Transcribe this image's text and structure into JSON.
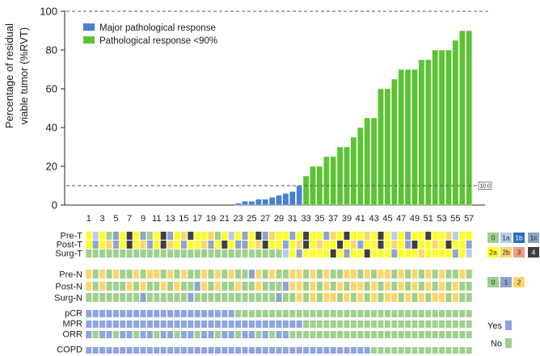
{
  "chart_data": {
    "type": "bar",
    "title": "",
    "ylabel_line1": "Percentage of residual",
    "ylabel_line2": "viable tumor (%RVT)",
    "xlabel": "",
    "ylim": [
      0,
      100
    ],
    "yticks": [
      0,
      20,
      40,
      60,
      80,
      100
    ],
    "reference_lines": [
      {
        "value": 100,
        "style": "dashed",
        "label": ""
      },
      {
        "value": 10,
        "style": "dashed",
        "label": "10.0"
      }
    ],
    "legend": [
      {
        "label": "Major pathological response",
        "color": "#4a7fd4"
      },
      {
        "label": "Pathological response <90%",
        "color": "#5cc334"
      }
    ],
    "xtick_labels": [
      "1",
      "3",
      "5",
      "7",
      "9",
      "11",
      "13",
      "15",
      "17",
      "19",
      "21",
      "23",
      "25",
      "27",
      "29",
      "31",
      "33",
      "35",
      "37",
      "39",
      "41",
      "43",
      "45",
      "47",
      "49",
      "51",
      "53",
      "55",
      "57"
    ],
    "patients": [
      1,
      2,
      3,
      4,
      5,
      6,
      7,
      8,
      9,
      10,
      11,
      12,
      13,
      14,
      15,
      16,
      17,
      18,
      19,
      20,
      21,
      22,
      23,
      24,
      25,
      26,
      27,
      28,
      29,
      30,
      31,
      32,
      33,
      34,
      35,
      36,
      37,
      38,
      39,
      40,
      41,
      42,
      43,
      44,
      45,
      46,
      47,
      48,
      49,
      50,
      51,
      52,
      53,
      54,
      55,
      56,
      57
    ],
    "values": [
      0,
      0,
      0,
      0,
      0,
      0,
      0,
      0,
      0,
      0,
      0,
      0,
      0,
      0,
      0,
      0,
      0,
      0,
      0,
      0,
      0,
      0,
      1,
      2,
      2,
      3,
      3,
      4,
      5,
      6,
      7,
      10,
      15,
      20,
      20,
      25,
      25,
      30,
      30,
      35,
      40,
      45,
      45,
      60,
      60,
      65,
      70,
      70,
      70,
      75,
      75,
      80,
      80,
      80,
      85,
      90,
      90
    ],
    "groups": [
      "MPR",
      "MPR",
      "MPR",
      "MPR",
      "MPR",
      "MPR",
      "MPR",
      "MPR",
      "MPR",
      "MPR",
      "MPR",
      "MPR",
      "MPR",
      "MPR",
      "MPR",
      "MPR",
      "MPR",
      "MPR",
      "MPR",
      "MPR",
      "MPR",
      "MPR",
      "MPR",
      "MPR",
      "MPR",
      "MPR",
      "MPR",
      "MPR",
      "MPR",
      "MPR",
      "MPR",
      "MPR",
      "PR",
      "PR",
      "PR",
      "PR",
      "PR",
      "PR",
      "PR",
      "PR",
      "PR",
      "PR",
      "PR",
      "PR",
      "PR",
      "PR",
      "PR",
      "PR",
      "PR",
      "PR",
      "PR",
      "PR",
      "PR",
      "PR",
      "PR",
      "PR",
      "PR"
    ],
    "group_colors": {
      "MPR": "#4a7fd4",
      "PR": "#5cc334"
    },
    "heatmap": {
      "rows": [
        {
          "label": "Pre-T",
          "codes": [
            "2a",
            "1a",
            "2a",
            "0",
            "1c",
            "2a",
            "4",
            "2a",
            "1c",
            "0",
            "2a",
            "4",
            "1c",
            "2a",
            "2b",
            "4",
            "2a",
            "2a",
            "2b",
            "0",
            "2a",
            "1a",
            "2a",
            "1c",
            "2a",
            "4",
            "1c",
            "2b",
            "2a",
            "2a",
            "1c",
            "2a",
            "4",
            "2a",
            "2a",
            "1c",
            "2b",
            "2a",
            "4",
            "2a",
            "2a",
            "2b",
            "2a",
            "4",
            "2a",
            "1a",
            "2a",
            "1c",
            "2a",
            "2a",
            "4",
            "2a",
            "2a",
            "2b",
            "1a",
            "2a",
            "2a"
          ]
        },
        {
          "label": "Post-T",
          "codes": [
            "2a",
            "1c",
            "2a",
            "2b",
            "1c",
            "2a",
            "4",
            "2a",
            "2b",
            "1c",
            "2a",
            "4",
            "2b",
            "2a",
            "1c",
            "2a",
            "2a",
            "2b",
            "1c",
            "2a",
            "4",
            "2a",
            "1c",
            "1c",
            "2a",
            "2b",
            "4",
            "2a",
            "2a",
            "1c",
            "2a",
            "2b",
            "4",
            "2a",
            "2b",
            "2a",
            "2a",
            "4",
            "2a",
            "2b",
            "1c",
            "2a",
            "2a",
            "4",
            "2a",
            "2b",
            "2a",
            "1c",
            "4",
            "2a",
            "2a",
            "2b",
            "2a",
            "4",
            "2a",
            "2a",
            "1c"
          ]
        },
        {
          "label": "Surg-T",
          "codes": [
            "0",
            "0",
            "0",
            "0",
            "0",
            "0",
            "0",
            "0",
            "0",
            "0",
            "0",
            "0",
            "0",
            "0",
            "0",
            "0",
            "0",
            "0",
            "0",
            "0",
            "0",
            "0",
            "0",
            "0",
            "0",
            "0",
            "0",
            "0",
            "0",
            "1a",
            "2a",
            "1c",
            "2a",
            "2a",
            "2a",
            "2a",
            "4",
            "2a",
            "1c",
            "2a",
            "2a",
            "4",
            "2a",
            "2a",
            "2a",
            "1c",
            "2a",
            "2a",
            "2a",
            "2b",
            "2a",
            "2a",
            "2a",
            "2a",
            "1c",
            "2a",
            "1a"
          ]
        },
        {
          "label": "Pre-N",
          "codes": [
            "2",
            "0",
            "2",
            "0",
            "2",
            "0",
            "0",
            "2",
            "0",
            "2",
            "2",
            "0",
            "2",
            "0",
            "2",
            "0",
            "0",
            "2",
            "0",
            "2",
            "0",
            "2",
            "0",
            "0",
            "1",
            "2",
            "0",
            "2",
            "0",
            "0",
            "2",
            "2",
            "0",
            "2",
            "0",
            "2",
            "0",
            "0",
            "2",
            "2",
            "0",
            "2",
            "0",
            "2",
            "2",
            "0",
            "2",
            "0",
            "2",
            "0",
            "2",
            "0",
            "2",
            "0",
            "0",
            "2",
            "0"
          ]
        },
        {
          "label": "Post-N",
          "codes": [
            "2",
            "0",
            "2",
            "0",
            "0",
            "0",
            "2",
            "0",
            "2",
            "0",
            "0",
            "2",
            "0",
            "2",
            "0",
            "0",
            "1",
            "2",
            "0",
            "2",
            "0",
            "0",
            "2",
            "0",
            "0",
            "2",
            "0",
            "0",
            "0",
            "1",
            "2",
            "2",
            "0",
            "2",
            "0",
            "2",
            "0",
            "2",
            "0",
            "2",
            "2",
            "0",
            "2",
            "0",
            "2",
            "0",
            "2",
            "0",
            "2",
            "0",
            "2",
            "0",
            "2",
            "0",
            "2",
            "0",
            "0"
          ]
        },
        {
          "label": "Surg-N",
          "codes": [
            "0",
            "0",
            "0",
            "0",
            "0",
            "0",
            "0",
            "0",
            "1",
            "0",
            "0",
            "0",
            "0",
            "0",
            "0",
            "1",
            "0",
            "0",
            "0",
            "0",
            "0",
            "0",
            "0",
            "0",
            "0",
            "0",
            "0",
            "0",
            "1",
            "0",
            "0",
            "2",
            "0",
            "2",
            "0",
            "2",
            "2",
            "0",
            "2",
            "0",
            "2",
            "0",
            "2",
            "0",
            "2",
            "2",
            "0",
            "2",
            "0",
            "2",
            "0",
            "2",
            "2",
            "0",
            "2",
            "0",
            "0"
          ]
        },
        {
          "label": "pCR",
          "codes": [
            "Y",
            "Y",
            "Y",
            "Y",
            "Y",
            "Y",
            "Y",
            "Y",
            "Y",
            "Y",
            "Y",
            "Y",
            "Y",
            "Y",
            "Y",
            "Y",
            "Y",
            "Y",
            "Y",
            "Y",
            "Y",
            "Y",
            "N",
            "N",
            "N",
            "N",
            "N",
            "N",
            "N",
            "N",
            "N",
            "N",
            "N",
            "N",
            "N",
            "N",
            "N",
            "N",
            "N",
            "N",
            "N",
            "N",
            "N",
            "N",
            "N",
            "N",
            "N",
            "N",
            "N",
            "N",
            "N",
            "N",
            "N",
            "N",
            "N",
            "N",
            "N"
          ]
        },
        {
          "label": "MPR",
          "codes": [
            "Y",
            "Y",
            "Y",
            "Y",
            "Y",
            "Y",
            "Y",
            "Y",
            "Y",
            "Y",
            "Y",
            "Y",
            "Y",
            "Y",
            "Y",
            "Y",
            "Y",
            "Y",
            "Y",
            "Y",
            "Y",
            "Y",
            "Y",
            "Y",
            "Y",
            "Y",
            "Y",
            "Y",
            "Y",
            "Y",
            "Y",
            "Y",
            "N",
            "N",
            "N",
            "N",
            "N",
            "N",
            "N",
            "N",
            "N",
            "N",
            "N",
            "N",
            "N",
            "N",
            "N",
            "N",
            "N",
            "N",
            "N",
            "N",
            "N",
            "N",
            "N",
            "N",
            "N"
          ]
        },
        {
          "label": "ORR",
          "codes": [
            "Y",
            "N",
            "Y",
            "Y",
            "N",
            "Y",
            "Y",
            "N",
            "Y",
            "Y",
            "N",
            "Y",
            "Y",
            "N",
            "Y",
            "Y",
            "N",
            "Y",
            "Y",
            "N",
            "Y",
            "Y",
            "N",
            "Y",
            "Y",
            "N",
            "Y",
            "N",
            "Y",
            "Y",
            "N",
            "N",
            "N",
            "N",
            "N",
            "N",
            "N",
            "N",
            "N",
            "N",
            "N",
            "N",
            "N",
            "N",
            "N",
            "N",
            "N",
            "N",
            "N",
            "N",
            "N",
            "N",
            "N",
            "N",
            "N",
            "N",
            "N"
          ]
        },
        {
          "label": "COPD",
          "codes": [
            "Y",
            "Y",
            "Y",
            "Y",
            "Y",
            "Y",
            "Y",
            "Y",
            "Y",
            "Y",
            "Y",
            "Y",
            "Y",
            "Y",
            "Y",
            "Y",
            "Y",
            "Y",
            "Y",
            "Y",
            "Y",
            "Y",
            "Y",
            "Y",
            "Y",
            "Y",
            "Y",
            "Y",
            "Y",
            "Y",
            "Y",
            "Y",
            "Y",
            "Y",
            "Y",
            "Y",
            "Y",
            "Y",
            "Y",
            "Y",
            "Y",
            "Y",
            "N",
            "N",
            "N",
            "N",
            "N",
            "N",
            "N",
            "N",
            "N",
            "N",
            "N",
            "N",
            "N",
            "N",
            "N"
          ]
        }
      ],
      "t_legend": [
        {
          "code": "0",
          "label": "0",
          "color": "#9fd08e"
        },
        {
          "code": "1a",
          "label": "1a",
          "color": "#b9cdea"
        },
        {
          "code": "1b",
          "label": "1b",
          "color": "#2f6bc4"
        },
        {
          "code": "1c",
          "label": "1c",
          "color": "#8ea4c8"
        },
        {
          "code": "2a",
          "label": "2a",
          "color": "#ffff22"
        },
        {
          "code": "2b",
          "label": "2b",
          "color": "#ffd56a"
        },
        {
          "code": "3",
          "label": "3",
          "color": "#ee9e7c"
        },
        {
          "code": "4",
          "label": "4",
          "color": "#3f3f3f"
        }
      ],
      "n_legend": [
        {
          "code": "0",
          "label": "0",
          "color": "#9fd08e"
        },
        {
          "code": "1",
          "label": "1",
          "color": "#8ea4c8"
        },
        {
          "code": "2",
          "label": "2",
          "color": "#ffd56a"
        }
      ],
      "yn_legend": [
        {
          "code": "Y",
          "label": "Yes",
          "color": "#8ea4dc"
        },
        {
          "code": "N",
          "label": "No",
          "color": "#9fd08e"
        }
      ]
    }
  }
}
